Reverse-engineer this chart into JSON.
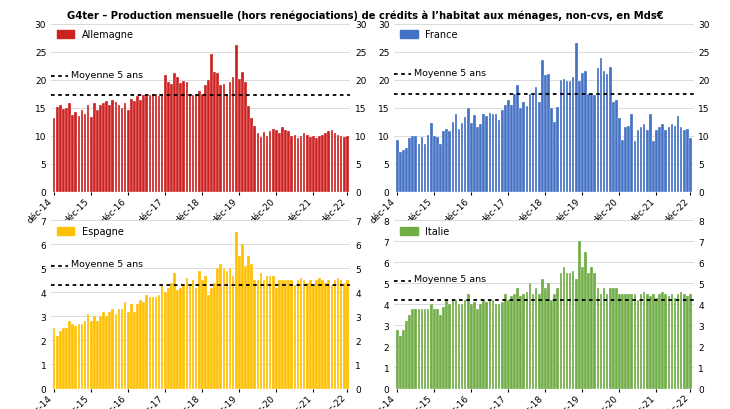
{
  "title": "G4ter – Production mensuelle (hors renégociations) de crédits à l’habitat aux ménages, non-cvs, en Mds€",
  "panels": [
    {
      "label": "Allemagne",
      "color": "#CC2222",
      "mean_line": 17.2,
      "ylim": [
        0,
        30
      ],
      "yticks": [
        0,
        5,
        10,
        15,
        20,
        25,
        30
      ],
      "values": [
        13.2,
        15.1,
        15.5,
        14.7,
        14.9,
        15.8,
        13.6,
        14.3,
        13.5,
        14.6,
        13.8,
        15.5,
        13.3,
        15.9,
        14.5,
        15.5,
        15.8,
        16.2,
        15.5,
        16.3,
        16.0,
        15.5,
        14.9,
        15.9,
        14.5,
        16.5,
        16.2,
        17.0,
        16.3,
        17.3,
        17.0,
        17.2,
        17.3,
        17.5,
        17.1,
        17.4,
        20.8,
        19.5,
        19.2,
        21.1,
        20.5,
        19.4,
        19.8,
        19.5,
        17.4,
        17.3,
        17.5,
        18.0,
        17.4,
        19.0,
        20.0,
        24.5,
        21.4,
        21.2,
        19.0,
        19.2,
        17.3,
        19.5,
        20.5,
        26.1,
        20.2,
        21.4,
        19.5,
        15.3,
        13.2,
        11.8,
        10.5,
        9.8,
        10.7,
        10.0,
        10.9,
        11.2,
        11.0,
        10.5,
        11.5,
        11.0,
        10.8,
        10.0,
        10.2,
        9.5,
        10.0,
        10.5,
        10.2,
        9.8,
        10.0,
        9.5,
        10.0,
        10.2,
        10.5,
        10.8,
        11.0,
        10.5,
        10.2,
        10.0,
        9.8,
        10.0
      ]
    },
    {
      "label": "France",
      "color": "#4472C4",
      "mean_line": 17.5,
      "ylim": [
        0,
        30
      ],
      "yticks": [
        0,
        5,
        10,
        15,
        20,
        25,
        30
      ],
      "values": [
        9.2,
        7.0,
        7.5,
        7.8,
        9.6,
        10.0,
        9.9,
        8.6,
        9.7,
        8.5,
        10.2,
        12.2,
        10.0,
        9.8,
        8.5,
        10.8,
        11.2,
        10.8,
        12.5,
        13.9,
        11.2,
        12.2,
        13.3,
        15.0,
        12.2,
        13.6,
        11.5,
        12.0,
        13.8,
        13.5,
        14.0,
        13.8,
        13.8,
        12.8,
        14.5,
        15.5,
        16.3,
        15.5,
        17.5,
        19.1,
        14.9,
        16.0,
        15.3,
        17.5,
        17.3,
        18.7,
        16.0,
        23.5,
        20.8,
        21.0,
        15.0,
        12.5,
        15.1,
        20.0,
        20.2,
        19.8,
        19.8,
        20.5,
        26.5,
        19.8,
        21.2,
        21.6,
        17.4,
        17.5,
        17.2,
        22.0,
        23.8,
        21.5,
        21.0,
        22.3,
        16.0,
        16.3,
        13.2,
        9.2,
        11.5,
        11.8,
        13.8,
        9.0,
        11.0,
        11.5,
        12.0,
        11.0,
        13.8,
        9.0,
        11.0,
        11.5,
        12.0,
        11.0,
        11.5,
        12.0,
        11.8,
        13.5,
        11.5,
        11.0,
        11.2,
        9.5
      ]
    },
    {
      "label": "Espagne",
      "color": "#FFC000",
      "mean_line": 4.3,
      "ylim": [
        0,
        7
      ],
      "yticks": [
        0,
        1,
        2,
        3,
        4,
        5,
        6,
        7
      ],
      "values": [
        2.5,
        2.2,
        2.4,
        2.5,
        2.5,
        2.8,
        2.7,
        2.6,
        2.7,
        2.7,
        2.8,
        3.1,
        2.8,
        3.0,
        2.8,
        3.0,
        3.2,
        3.0,
        3.2,
        3.3,
        3.1,
        3.3,
        3.3,
        3.6,
        3.2,
        3.5,
        3.2,
        3.5,
        3.7,
        3.6,
        3.9,
        3.8,
        3.8,
        3.8,
        3.9,
        4.3,
        4.0,
        4.2,
        4.4,
        4.8,
        4.1,
        4.2,
        4.3,
        4.6,
        4.3,
        4.5,
        4.2,
        4.9,
        4.5,
        4.7,
        3.9,
        4.2,
        4.4,
        5.0,
        5.2,
        5.0,
        4.9,
        5.0,
        4.7,
        6.5,
        5.5,
        6.0,
        5.1,
        5.5,
        5.2,
        4.5,
        4.5,
        4.8,
        4.5,
        4.7,
        4.7,
        4.7,
        4.2,
        4.5,
        4.5,
        4.5,
        4.5,
        4.5,
        4.3,
        4.5,
        4.6,
        4.5,
        4.4,
        4.5,
        4.3,
        4.5,
        4.6,
        4.5,
        4.4,
        4.5,
        4.3,
        4.5,
        4.6,
        4.5,
        4.4,
        4.5
      ]
    },
    {
      "label": "Italie",
      "color": "#70AD47",
      "mean_line": 4.2,
      "ylim": [
        0,
        8
      ],
      "yticks": [
        0,
        1,
        2,
        3,
        4,
        5,
        6,
        7,
        8
      ],
      "values": [
        2.8,
        2.5,
        2.8,
        3.2,
        3.5,
        3.8,
        3.8,
        3.8,
        3.8,
        3.8,
        3.8,
        4.0,
        3.8,
        3.8,
        3.5,
        3.9,
        4.2,
        4.0,
        4.2,
        4.2,
        4.0,
        4.0,
        4.2,
        4.5,
        4.0,
        4.1,
        3.8,
        4.0,
        4.2,
        4.1,
        4.2,
        4.2,
        4.0,
        4.0,
        4.1,
        4.5,
        4.2,
        4.4,
        4.5,
        4.8,
        4.4,
        4.5,
        4.6,
        5.0,
        4.5,
        4.8,
        4.5,
        5.2,
        4.8,
        5.0,
        4.2,
        4.5,
        4.8,
        5.5,
        5.8,
        5.5,
        5.5,
        5.6,
        5.2,
        7.0,
        5.8,
        6.5,
        5.5,
        5.8,
        5.5,
        4.8,
        4.5,
        4.8,
        4.5,
        4.8,
        4.8,
        4.8,
        4.5,
        4.5,
        4.5,
        4.5,
        4.5,
        4.5,
        4.2,
        4.5,
        4.6,
        4.5,
        4.4,
        4.5,
        4.3,
        4.5,
        4.6,
        4.5,
        4.4,
        4.5,
        4.3,
        4.5,
        4.6,
        4.5,
        4.4,
        4.5
      ]
    }
  ],
  "xtick_labels": [
    "déc-14",
    "déc-15",
    "déc-16",
    "déc-17",
    "déc-18",
    "déc-19",
    "déc-20",
    "déc-21",
    "déc-22"
  ],
  "xtick_positions": [
    0,
    12,
    24,
    36,
    48,
    60,
    72,
    84,
    95
  ],
  "n_bars": 96,
  "background_color": "#FFFFFF",
  "mean_label": "Moyenne 5 ans"
}
